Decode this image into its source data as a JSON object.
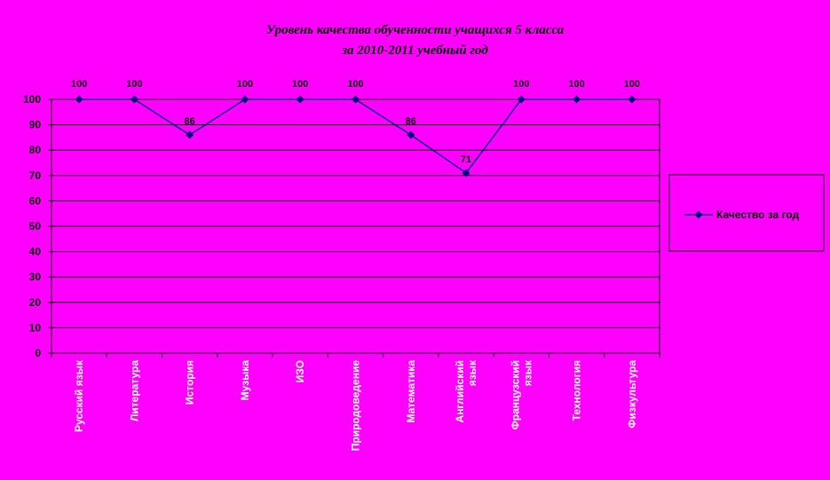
{
  "chart_data": {
    "type": "line",
    "title": [
      "Уровень качества обученности учащихся 5 класса",
      "за 2010-2011 учебный год"
    ],
    "categories": [
      "Русский язык",
      "Литература",
      "История",
      "Музыка",
      "ИЗО",
      "Природоведение",
      "Математика",
      "Английский язык",
      "Французский язык",
      "Технология",
      "Физкультура"
    ],
    "category_lines": [
      [
        "Русский язык"
      ],
      [
        "Литература"
      ],
      [
        "История"
      ],
      [
        "Музыка"
      ],
      [
        "ИЗО"
      ],
      [
        "Природоведение"
      ],
      [
        "Математика"
      ],
      [
        "Английский",
        "язык"
      ],
      [
        "Французский",
        "язык"
      ],
      [
        "Технология"
      ],
      [
        "Физкультура"
      ]
    ],
    "series": [
      {
        "name": "Качество за год",
        "values": [
          100,
          100,
          86,
          100,
          100,
          100,
          86,
          71,
          100,
          100,
          100
        ],
        "color": "#000080"
      }
    ],
    "ylim": [
      0,
      100
    ],
    "yticks": [
      0,
      10,
      20,
      30,
      40,
      50,
      60,
      70,
      80,
      90,
      100
    ],
    "grid": true,
    "legend_position": "right",
    "colors": {
      "background": "#ff00ff",
      "plot_border": "#000000",
      "line": "#000080",
      "marker": "#000080"
    }
  }
}
